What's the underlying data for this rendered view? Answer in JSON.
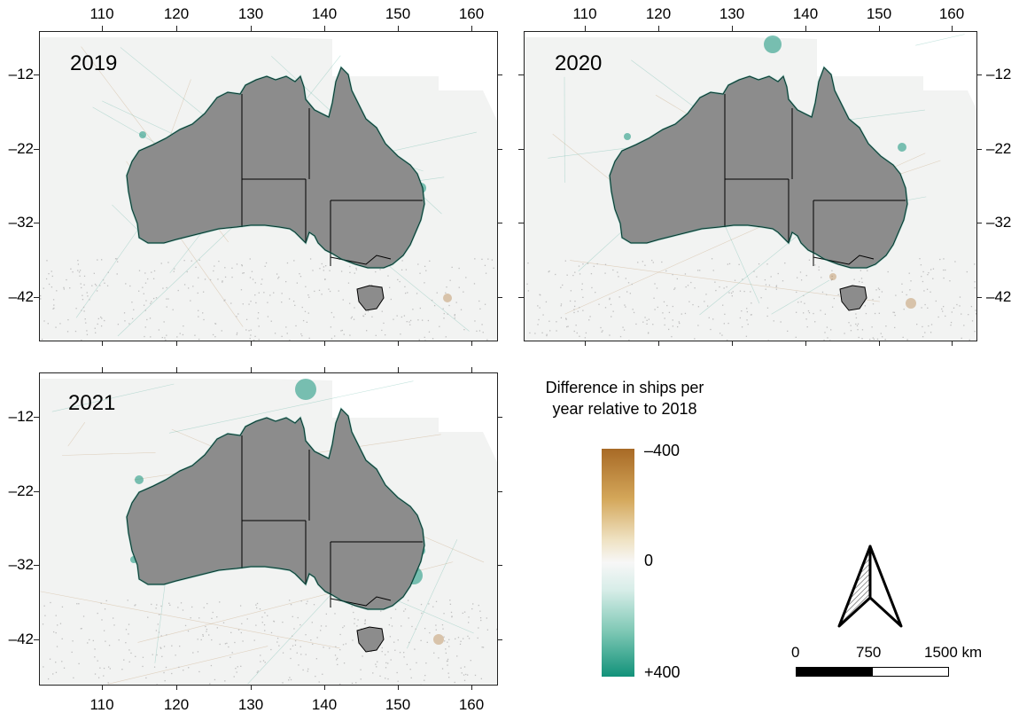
{
  "panels": [
    {
      "year": "2019"
    },
    {
      "year": "2020"
    },
    {
      "year": "2021"
    }
  ],
  "axes": {
    "lon_ticks": [
      "110",
      "120",
      "130",
      "140",
      "150",
      "160"
    ],
    "lat_ticks": [
      "–12",
      "–22",
      "–32",
      "–42"
    ]
  },
  "legend": {
    "title_line1": "Difference in ships per",
    "title_line2": "year relative to 2018",
    "top_label": "–400",
    "mid_label": "0",
    "bottom_label": "+400",
    "colors": {
      "high_decrease": "#a86a26",
      "zero": "#f7f7f7",
      "high_increase": "#12927a"
    }
  },
  "scale_bar": {
    "labels": [
      "0",
      "750",
      "1500 km"
    ]
  },
  "map_colors": {
    "land": "#8c8c8c",
    "ocean": "#f2f3f2",
    "border": "#000000"
  },
  "icons": {
    "north_arrow": "north-arrow-icon"
  }
}
